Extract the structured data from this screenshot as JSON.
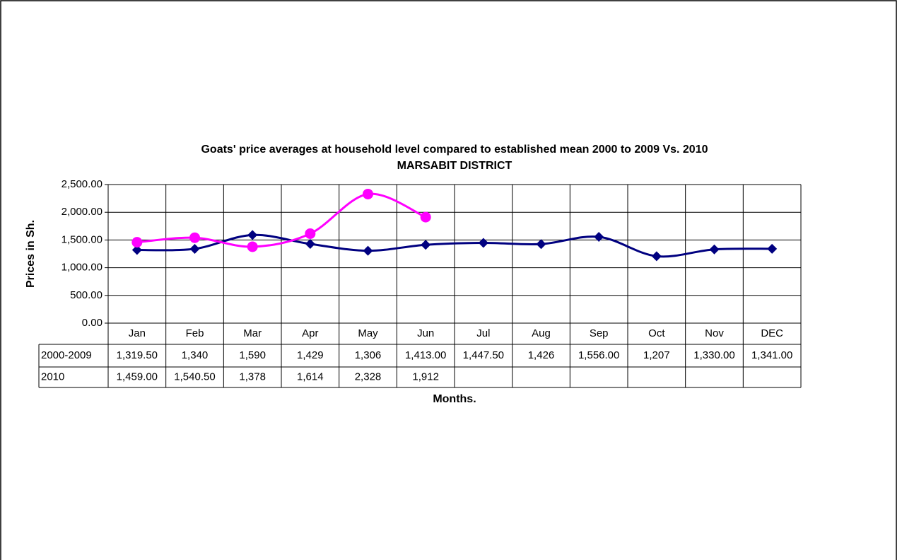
{
  "chart_data": {
    "type": "line",
    "title": "Goats' price averages at household level compared to established mean 2000 to 2009 Vs. 2010",
    "subtitle": "MARSABIT DISTRICT",
    "y_label": "Prices in Sh.",
    "x_label": "Months.",
    "categories": [
      "Jan",
      "Feb",
      "Mar",
      "Apr",
      "May",
      "Jun",
      "Jul",
      "Aug",
      "Sep",
      "Oct",
      "Nov",
      "DEC"
    ],
    "series": [
      {
        "name": "2000-2009",
        "color": "#000080",
        "marker": "diamond",
        "values": [
          1319.5,
          1340,
          1590,
          1429,
          1306,
          1413,
          1447.5,
          1426,
          1556,
          1207,
          1330,
          1341
        ],
        "value_labels": [
          "1,319.50",
          "1,340",
          "1,590",
          "1,429",
          "1,306",
          "1,413.00",
          "1,447.50",
          "1,426",
          "1,556.00",
          "1,207",
          "1,330.00",
          "1,341.00"
        ]
      },
      {
        "name": "2010",
        "color": "#ff00ff",
        "marker": "circle",
        "values": [
          1459,
          1540.5,
          1378,
          1614,
          2328,
          1912,
          null,
          null,
          null,
          null,
          null,
          null
        ],
        "value_labels": [
          "1,459.00",
          "1,540.50",
          "1,378",
          "1,614",
          "2,328",
          "1,912",
          null,
          null,
          null,
          null,
          null,
          null
        ]
      }
    ],
    "ylim": [
      0,
      2500
    ],
    "yticks": [
      {
        "value": 0,
        "label": "0.00"
      },
      {
        "value": 500,
        "label": "500.00"
      },
      {
        "value": 1000,
        "label": "1,000.00"
      },
      {
        "value": 1500,
        "label": "1,500.00"
      },
      {
        "value": 2000,
        "label": "2,000.00"
      },
      {
        "value": 2500,
        "label": "2,500.00"
      }
    ],
    "grid": true,
    "smooth": true
  }
}
